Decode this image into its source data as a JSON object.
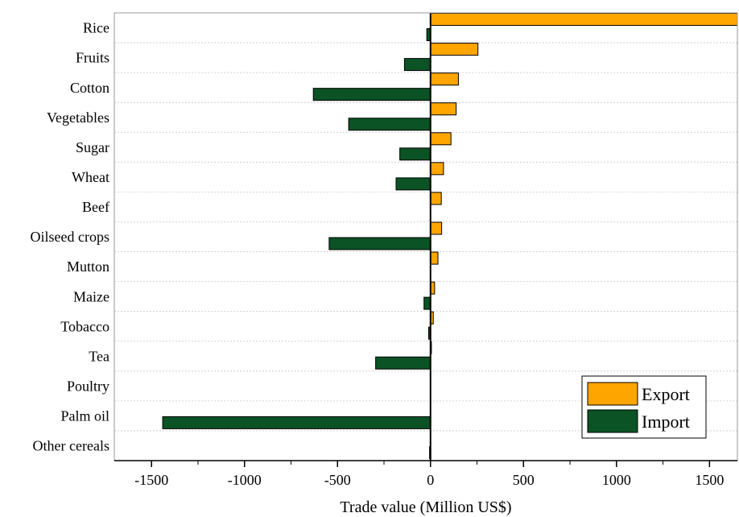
{
  "chart_data": {
    "type": "bar",
    "orientation": "horizontal",
    "xlabel": "Trade value (Million US$)",
    "ylabel": "",
    "xlim": [
      -1700,
      1650
    ],
    "xticks": [
      -1500,
      -1000,
      -500,
      0,
      500,
      1000,
      1500
    ],
    "xtick_labels": [
      "-1500",
      "-1000",
      "-500",
      "0",
      "500",
      "1000",
      "1500"
    ],
    "grid": "horizontal dotted lines between categories",
    "legend_position": "bottom-right",
    "categories": [
      "Rice",
      "Fruits",
      "Cotton",
      "Vegetables",
      "Sugar",
      "Wheat",
      "Beef",
      "Oilseed crops",
      "Mutton",
      "Maize",
      "Tobacco",
      "Tea",
      "Poultry",
      "Palm oil",
      "Other cereals"
    ],
    "series": [
      {
        "name": "Export",
        "color": "#FFA500",
        "values": [
          1650,
          255,
          150,
          138,
          110,
          70,
          58,
          60,
          40,
          22,
          15,
          5,
          0,
          0,
          0
        ]
      },
      {
        "name": "Import",
        "color": "#0B5225",
        "values": [
          -20,
          -140,
          -630,
          -440,
          -165,
          -185,
          0,
          -545,
          0,
          -35,
          -10,
          -295,
          0,
          -1440,
          -5
        ]
      }
    ]
  }
}
